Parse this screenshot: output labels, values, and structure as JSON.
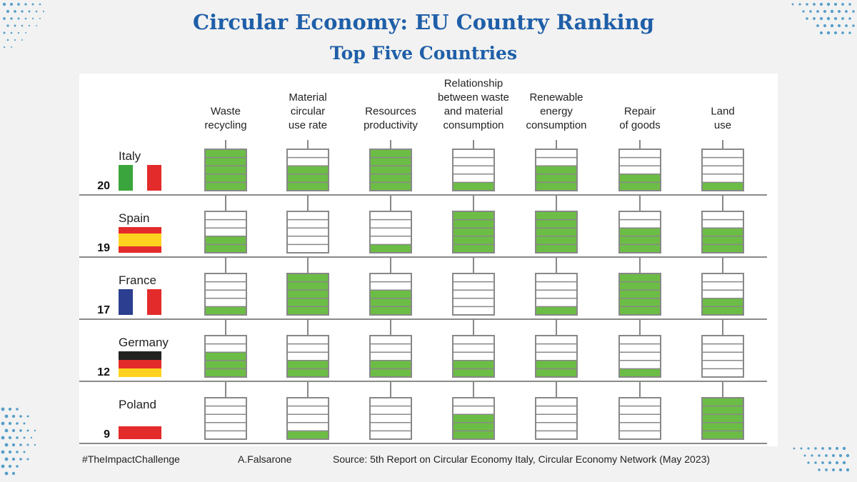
{
  "title": "Circular Economy: EU Country Ranking",
  "subtitle": "Top Five Countries",
  "footer": {
    "hashtag": "#TheImpactChallenge",
    "author": "A.Falsarone",
    "source": "Source: 5th Report on Circular Economy Italy, Circular Economy Network (May 2023)"
  },
  "colors": {
    "title": "#1f5fa8",
    "fill": "#6cbd45",
    "frame": "#888888",
    "shelf": "#8a8a8a",
    "background": "#f2f2f2",
    "panel": "#ffffff",
    "dots": "#3b8fc2"
  },
  "chart_data": {
    "type": "table",
    "levels_per_box": 5,
    "columns": [
      [
        "Waste",
        "recycling"
      ],
      [
        "Material",
        "circular",
        "use rate"
      ],
      [
        "Resources",
        "productivity"
      ],
      [
        "Relationship",
        "between waste",
        "and material",
        "consumption"
      ],
      [
        "Renewable",
        "energy",
        "consumption"
      ],
      [
        "Repair",
        "of goods"
      ],
      [
        "Land",
        "use"
      ]
    ],
    "rows": [
      {
        "country": "Italy",
        "score": "20",
        "flag": "italy",
        "levels": [
          5,
          3,
          5,
          1,
          3,
          2,
          1
        ]
      },
      {
        "country": "Spain",
        "score": "19",
        "flag": "spain",
        "levels": [
          2,
          0,
          1,
          5,
          5,
          3,
          3
        ]
      },
      {
        "country": "France",
        "score": "17",
        "flag": "france",
        "levels": [
          1,
          5,
          3,
          0,
          1,
          5,
          2
        ]
      },
      {
        "country": "Germany",
        "score": "12",
        "flag": "germany",
        "levels": [
          3,
          2,
          2,
          2,
          2,
          1,
          0
        ]
      },
      {
        "country": "Poland",
        "score": "9",
        "flag": "poland",
        "levels": [
          0,
          1,
          0,
          3,
          0,
          0,
          5
        ]
      }
    ]
  }
}
